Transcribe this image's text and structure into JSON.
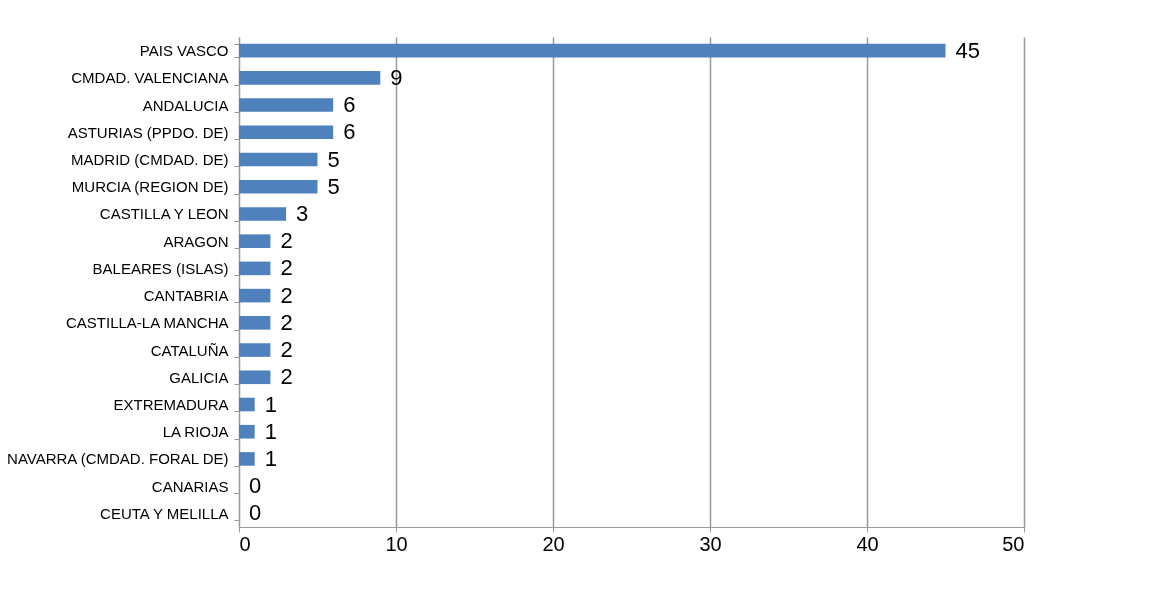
{
  "chart_data": {
    "type": "bar",
    "orientation": "horizontal",
    "categories": [
      "PAIS VASCO",
      "CMDAD. VALENCIANA",
      "ANDALUCIA",
      "ASTURIAS (PPDO. DE)",
      "MADRID (CMDAD. DE)",
      "MURCIA (REGION DE)",
      "CASTILLA Y LEON",
      "ARAGON",
      "BALEARES (ISLAS)",
      "CANTABRIA",
      "CASTILLA-LA MANCHA",
      "CATALUÑA",
      "GALICIA",
      "EXTREMADURA",
      "LA RIOJA",
      "NAVARRA (CMDAD. FORAL DE)",
      "CANARIAS",
      "CEUTA Y MELILLA"
    ],
    "values": [
      45,
      9,
      6,
      6,
      5,
      5,
      3,
      2,
      2,
      2,
      2,
      2,
      2,
      1,
      1,
      1,
      0,
      0
    ],
    "color": "#4f81bd",
    "xlim": [
      0,
      50
    ],
    "xticks": [
      0,
      10,
      20,
      30,
      40,
      50
    ],
    "grid": "x",
    "data_labels": true
  }
}
